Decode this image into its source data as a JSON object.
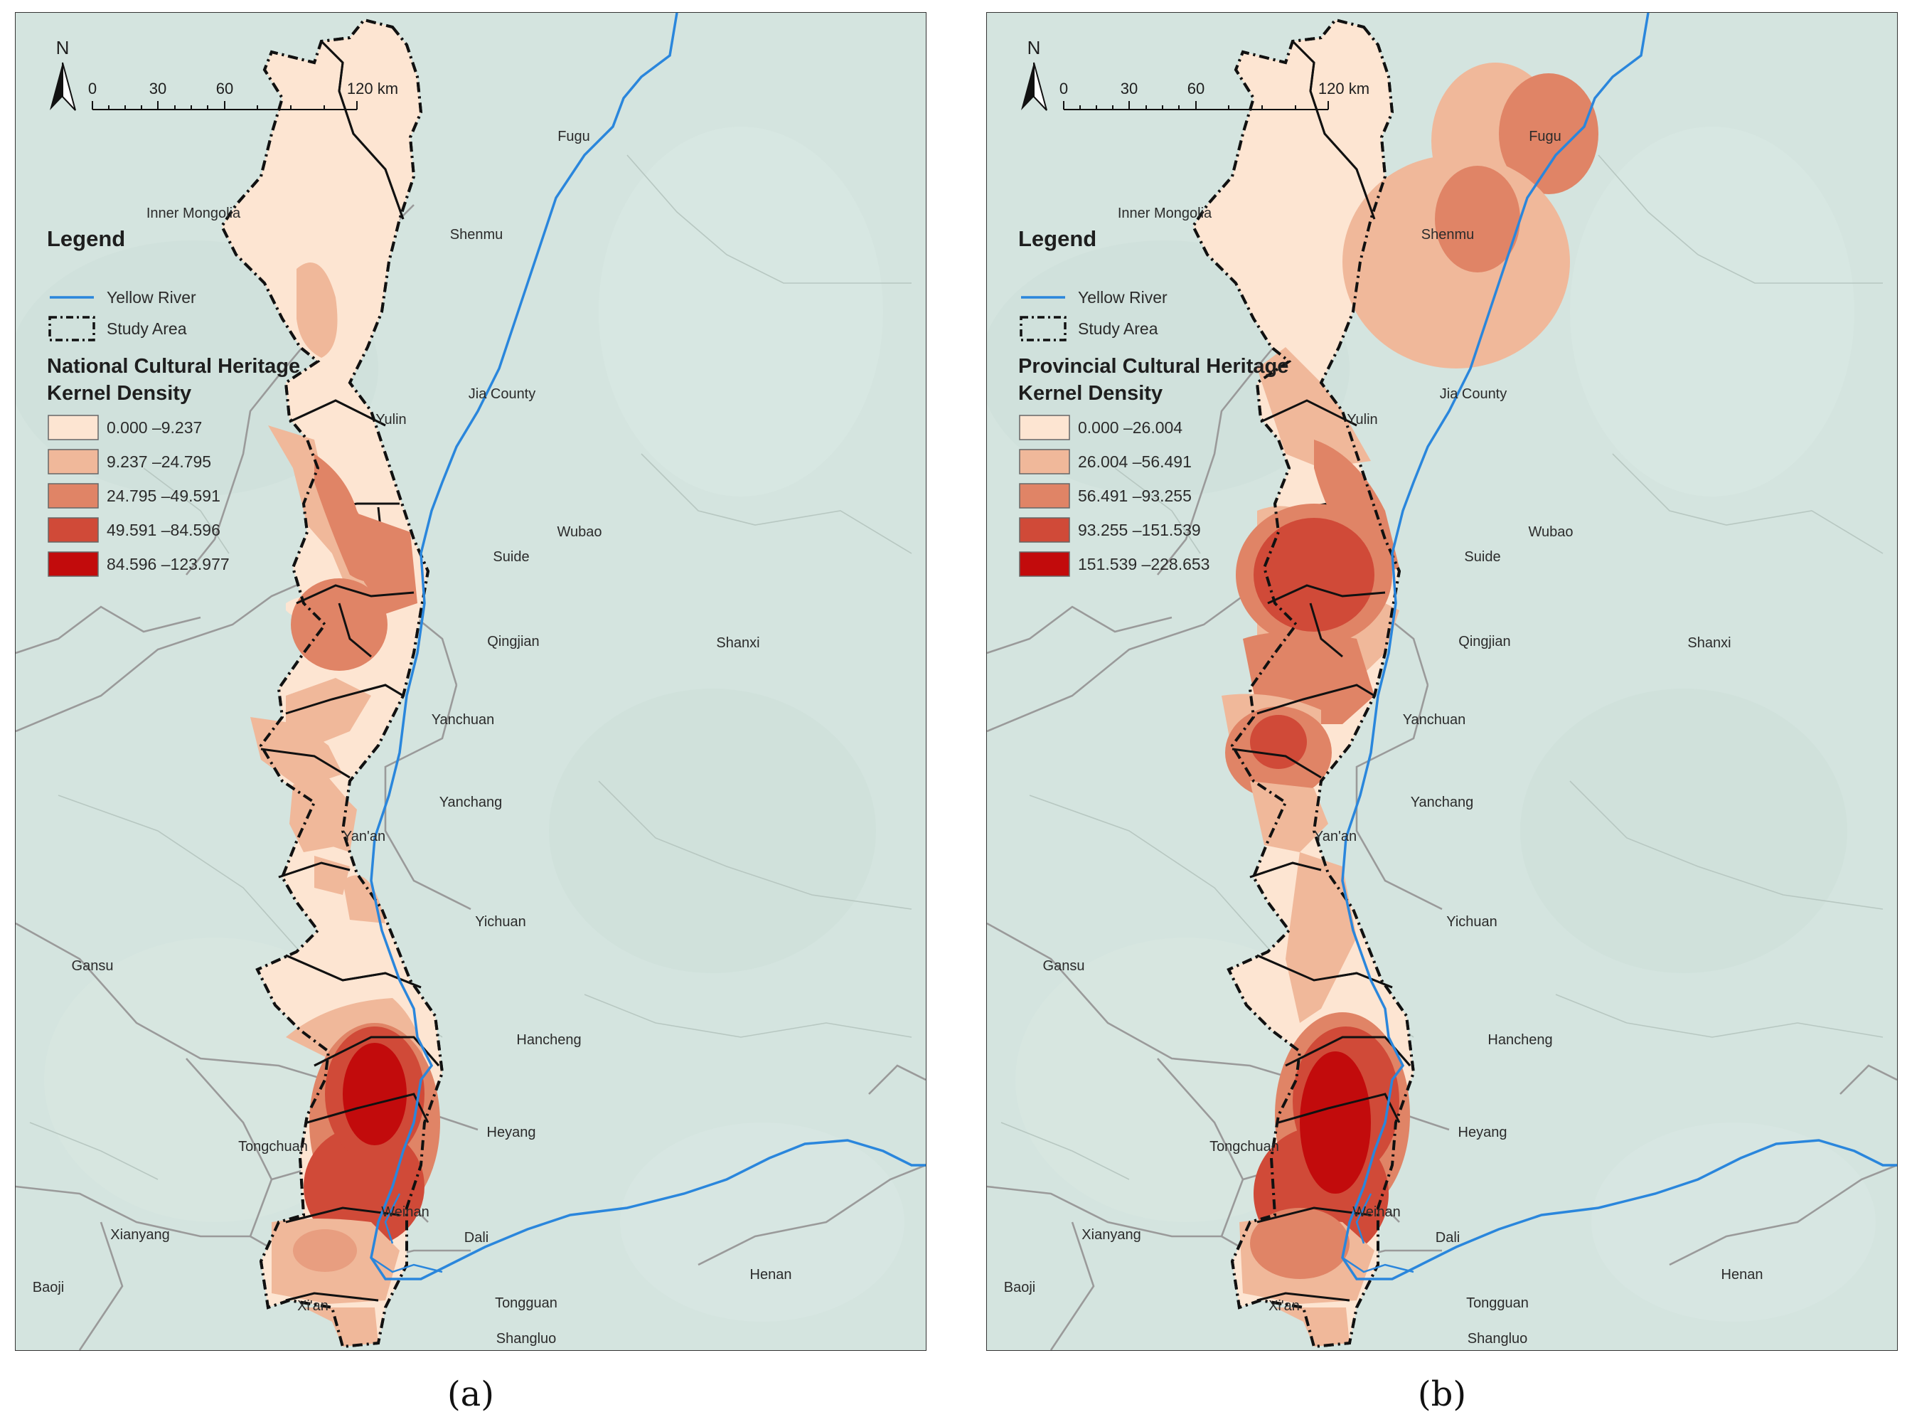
{
  "panels": [
    {
      "id": "a",
      "panel_label": "(a)",
      "north_label": "N",
      "scale_ticks": [
        "0",
        "30",
        "60",
        "120 km"
      ],
      "legend": {
        "title": "Legend",
        "river": "Yellow River",
        "study_area": "Study Area",
        "density_title_line1": "National Cultural Heritage",
        "density_title_line2": "Kernel Density",
        "classes": [
          {
            "label": "0.000 –9.237",
            "color": "#fde5d2"
          },
          {
            "label": "9.237 –24.795",
            "color": "#f0b89a"
          },
          {
            "label": "24.795 –49.591",
            "color": "#e08466"
          },
          {
            "label": "49.591 –84.596",
            "color": "#d04a38"
          },
          {
            "label": "84.596 –123.977",
            "color": "#c20b0c"
          }
        ]
      },
      "places": {
        "fugu": "Fugu",
        "shenmu": "Shenmu",
        "jia": "Jia County",
        "wubao": "Wubao",
        "suide": "Suide",
        "qingjian": "Qingjian",
        "yanchuan": "Yanchuan",
        "yanchang": "Yanchang",
        "yichuan": "Yichuan",
        "hancheng": "Hancheng",
        "heyang": "Heyang",
        "dali": "Dali",
        "tongguan": "Tongguan",
        "shangluo": "Shangluo",
        "inner_mongolia": "Inner Mongolia",
        "yulin": "Yulin",
        "shanxi": "Shanxi",
        "yanan": "Yan'an",
        "gansu": "Gansu",
        "tongchuan": "Tongchuan",
        "weinan": "Weinan",
        "xianyang": "Xianyang",
        "baoji": "Baoji",
        "xian": "Xi'an",
        "henan": "Henan"
      }
    },
    {
      "id": "b",
      "panel_label": "(b)",
      "north_label": "N",
      "scale_ticks": [
        "0",
        "30",
        "60",
        "120 km"
      ],
      "legend": {
        "title": "Legend",
        "river": "Yellow River",
        "study_area": "Study Area",
        "density_title_line1": "Provincial Cultural Heritage",
        "density_title_line2": "Kernel Density",
        "classes": [
          {
            "label": "0.000 –26.004",
            "color": "#fde5d2"
          },
          {
            "label": "26.004 –56.491",
            "color": "#f0b89a"
          },
          {
            "label": "56.491 –93.255",
            "color": "#e08466"
          },
          {
            "label": "93.255 –151.539",
            "color": "#d04a38"
          },
          {
            "label": "151.539 –228.653",
            "color": "#c20b0c"
          }
        ]
      },
      "places": {
        "fugu": "Fugu",
        "shenmu": "Shenmu",
        "jia": "Jia County",
        "wubao": "Wubao",
        "suide": "Suide",
        "qingjian": "Qingjian",
        "yanchuan": "Yanchuan",
        "yanchang": "Yanchang",
        "yichuan": "Yichuan",
        "hancheng": "Hancheng",
        "heyang": "Heyang",
        "dali": "Dali",
        "tongguan": "Tongguan",
        "shangluo": "Shangluo",
        "inner_mongolia": "Inner Mongolia",
        "yulin": "Yulin",
        "shanxi": "Shanxi",
        "yanan": "Yan'an",
        "gansu": "Gansu",
        "tongchuan": "Tongchuan",
        "weinan": "Weinan",
        "xianyang": "Xianyang",
        "baoji": "Baoji",
        "xian": "Xi'an",
        "henan": "Henan"
      }
    }
  ],
  "colors": {
    "basemap": "#d4e4df",
    "river": "#2a86dc",
    "boundary": "#111111",
    "gray_boundary": "#9a9a9a"
  }
}
